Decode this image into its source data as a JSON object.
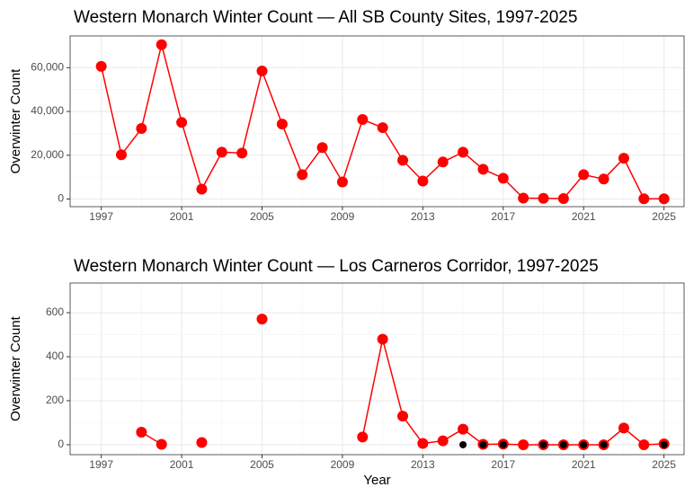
{
  "chart_data": [
    {
      "type": "line",
      "title": "Western Monarch Winter Count — All SB County Sites, 1997-2025",
      "y_label": "Overwinter Count",
      "x": [
        1997,
        1998,
        1999,
        2000,
        2001,
        2002,
        2003,
        2004,
        2005,
        2006,
        2007,
        2008,
        2009,
        2010,
        2011,
        2012,
        2013,
        2014,
        2015,
        2016,
        2017,
        2018,
        2019,
        2020,
        2021,
        2022,
        2023,
        2024,
        2025
      ],
      "series": [
        {
          "color": "#ff0000",
          "style": "line-points",
          "values": [
            60600,
            20200,
            32200,
            70500,
            35000,
            4500,
            21400,
            21000,
            58500,
            34200,
            11100,
            23500,
            7800,
            36300,
            32600,
            17700,
            8200,
            16900,
            21400,
            13600,
            9500,
            400,
            300,
            200,
            11100,
            9100,
            18600,
            100,
            100
          ]
        }
      ],
      "xlim": [
        1995.45,
        2026.0
      ],
      "xticks": [
        1997,
        2001,
        2005,
        2009,
        2013,
        2017,
        2021,
        2025
      ],
      "ylim": [
        -3500,
        74500
      ],
      "yticks": [
        0,
        {
          "value": 20000,
          "label": "20,000"
        },
        {
          "value": 40000,
          "label": "40,000"
        },
        {
          "value": 60000,
          "label": "60,000"
        }
      ],
      "grid": true
    },
    {
      "type": "line",
      "title": "Western Monarch Winter Count — Los Carneros Corridor, 1997-2025",
      "x_label": "Year",
      "y_label": "Overwinter Count",
      "x": [
        1997,
        1998,
        1999,
        2000,
        2001,
        2002,
        2003,
        2004,
        2005,
        2006,
        2007,
        2008,
        2009,
        2010,
        2011,
        2012,
        2013,
        2014,
        2015,
        2016,
        2017,
        2018,
        2019,
        2020,
        2021,
        2022,
        2023,
        2024,
        2025
      ],
      "series": [
        {
          "color": "#ff0000",
          "style": "line-points",
          "values": [
            null,
            null,
            57,
            2,
            null,
            10,
            null,
            null,
            571,
            null,
            null,
            null,
            null,
            35,
            480,
            130,
            6,
            18,
            71,
            2,
            3,
            0,
            0,
            0,
            0,
            0,
            76,
            0,
            4
          ]
        },
        {
          "color": "#000000",
          "style": "points",
          "values": [
            null,
            null,
            null,
            null,
            null,
            null,
            null,
            null,
            null,
            null,
            null,
            null,
            null,
            null,
            null,
            null,
            null,
            null,
            0,
            0,
            0,
            null,
            0,
            0,
            0,
            0,
            null,
            null,
            0
          ]
        }
      ],
      "xlim": [
        1995.45,
        2026.0
      ],
      "xticks": [
        1997,
        2001,
        2005,
        2009,
        2013,
        2017,
        2021,
        2025
      ],
      "ylim": [
        -45,
        735
      ],
      "yticks": [
        0,
        200,
        400,
        600
      ],
      "grid": true
    }
  ]
}
